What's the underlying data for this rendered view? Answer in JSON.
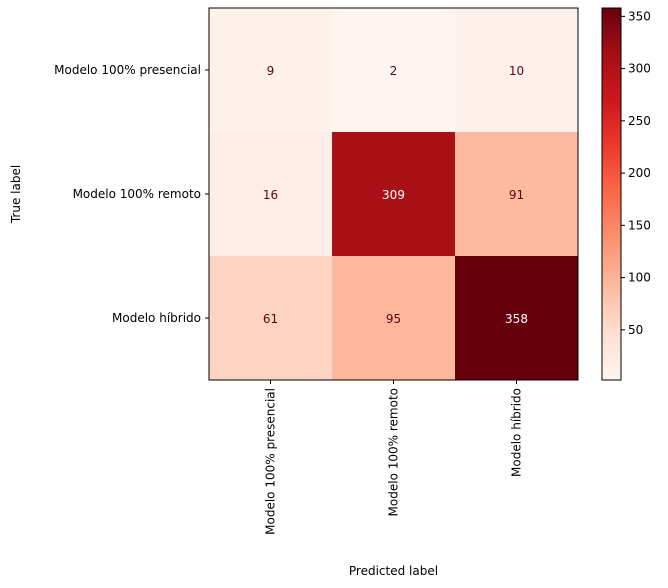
{
  "chart_data": {
    "type": "heatmap",
    "title": "",
    "xlabel": "Predicted label",
    "ylabel": "True label",
    "x_categories": [
      "Modelo 100% presencial",
      "Modelo 100% remoto",
      "Modelo híbrido"
    ],
    "y_categories": [
      "Modelo 100% presencial",
      "Modelo 100% remoto",
      "Modelo híbrido"
    ],
    "matrix": [
      [
        9,
        2,
        10
      ],
      [
        16,
        309,
        91
      ],
      [
        61,
        95,
        358
      ]
    ],
    "colormap": "Reds",
    "colorbar": {
      "min": 2,
      "max": 358,
      "ticks": [
        50,
        100,
        150,
        200,
        250,
        300,
        350
      ]
    },
    "grid": false
  }
}
